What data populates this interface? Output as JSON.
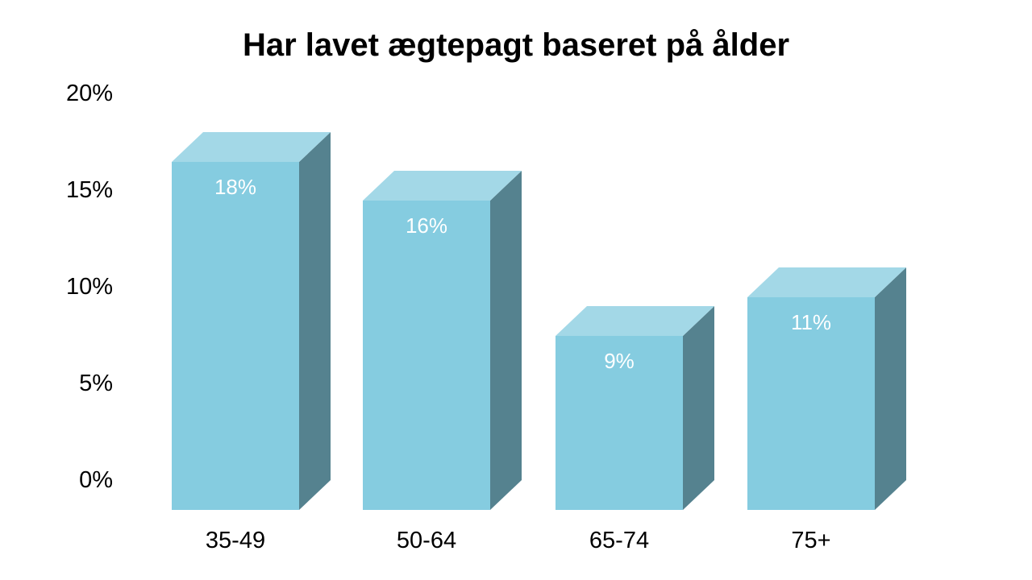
{
  "title": "Har lavet ægtepagt baseret på ålder",
  "chart_data": {
    "type": "bar",
    "style": "3d-column",
    "title": "Har lavet ægtepagt baseret på ålder",
    "categories": [
      "35-49",
      "50-64",
      "65-74",
      "75+"
    ],
    "values": [
      18,
      16,
      9,
      11
    ],
    "labels": [
      "18%",
      "16%",
      "9%",
      "11%"
    ],
    "xlabel": "",
    "ylabel": "",
    "ylim": [
      0,
      20
    ],
    "ytick_step": 5,
    "yticks": [
      "0%",
      "5%",
      "10%",
      "15%",
      "20%"
    ],
    "grid": false,
    "legend": false
  },
  "colors": {
    "background": "#ffffff",
    "bar_front": "#85CCE0",
    "bar_top": "#A3D8E7",
    "bar_side": "#55828F",
    "data_label": "#FFFFFF",
    "axis_text": "#000000",
    "title_text": "#000000"
  }
}
